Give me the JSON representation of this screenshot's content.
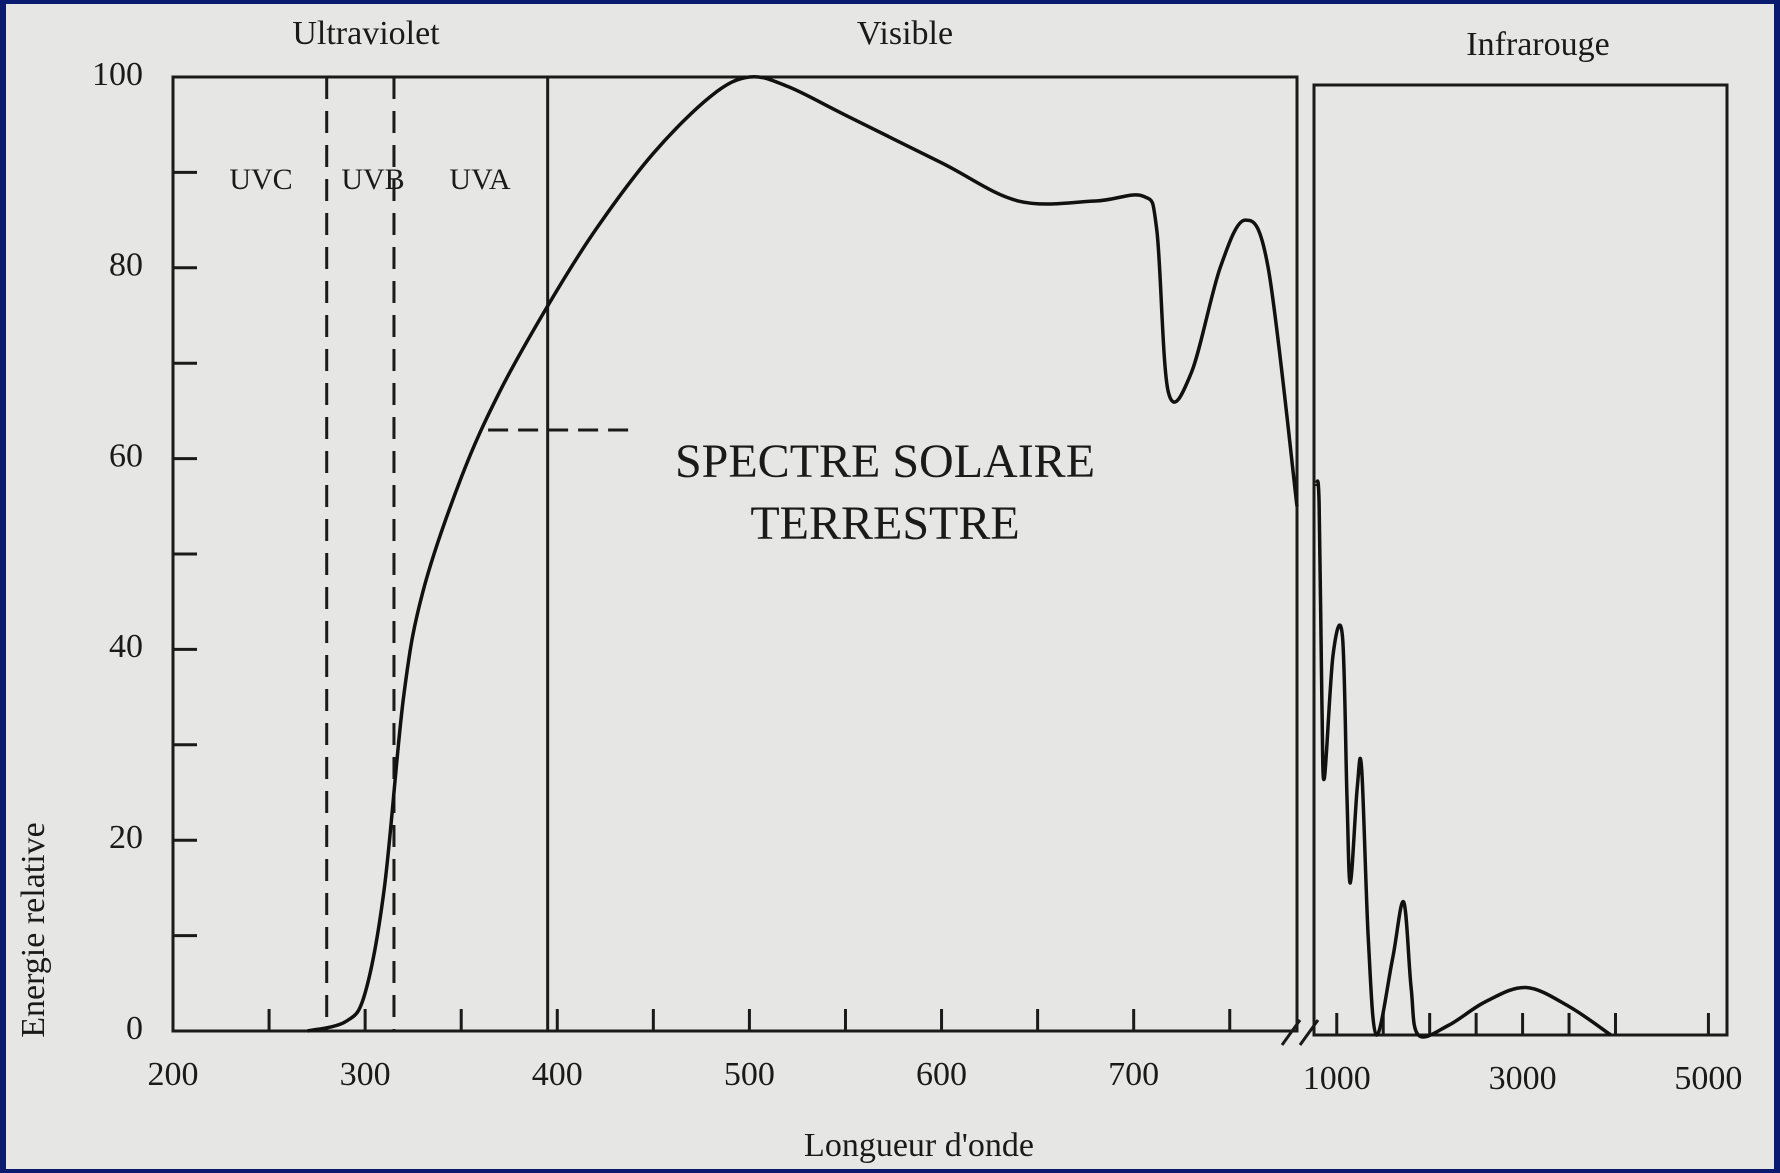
{
  "chart_data": [
    {
      "type": "line",
      "xlabel": "Longueur d'onde",
      "ylabel": "Energie relative",
      "band_labels": [
        "Ultraviolet",
        "Visible"
      ],
      "sub_labels": [
        "UVC",
        "UVB",
        "UVA"
      ],
      "annotations": [
        "SPECTRE SOLAIRE",
        "TERRESTRE"
      ],
      "xlim": [
        200,
        785
      ],
      "xticks": [
        200,
        300,
        400,
        500,
        600,
        700
      ],
      "xminor": [
        250,
        350,
        450,
        550,
        650,
        750
      ],
      "ylim": [
        0,
        100
      ],
      "yticks": [
        0,
        20,
        40,
        60,
        80,
        100
      ],
      "yminor": [
        10,
        30,
        50,
        70,
        90
      ],
      "boundaries": [
        280,
        315,
        395
      ],
      "boundary_dashed": [
        true,
        true,
        false
      ],
      "leader_x": [
        364,
        441
      ],
      "leader_y": 63,
      "color": "#111111",
      "x": [
        270,
        290,
        300,
        310,
        320,
        330,
        350,
        370,
        395,
        420,
        450,
        480,
        500,
        520,
        550,
        600,
        640,
        680,
        705,
        712,
        718,
        730,
        745,
        758,
        770,
        785
      ],
      "values": [
        0,
        1,
        4,
        15,
        35,
        46,
        58,
        67,
        76,
        84,
        92,
        98,
        100,
        99,
        96,
        91,
        87,
        87,
        87.5,
        84,
        67,
        69,
        80,
        85,
        80,
        55
      ]
    },
    {
      "type": "line",
      "band_labels": [
        "Infrarouge"
      ],
      "xlim": [
        755,
        5200
      ],
      "xticks": [
        1000,
        3000,
        5000
      ],
      "xminor": [
        1500,
        2000,
        2500,
        3500,
        4000
      ],
      "ylim": [
        0,
        100
      ],
      "color": "#111111",
      "x": [
        780,
        810,
        840,
        866,
        960,
        1061,
        1110,
        1146,
        1220,
        1268,
        1340,
        1427,
        1600,
        1720,
        1800,
        1878,
        2200,
        2600,
        3037,
        3500,
        3950
      ],
      "values": [
        58,
        56,
        35,
        27,
        40,
        42,
        25,
        16,
        26,
        28,
        10,
        0,
        8,
        14,
        5,
        0,
        1,
        3.5,
        5,
        3,
        0
      ]
    }
  ]
}
